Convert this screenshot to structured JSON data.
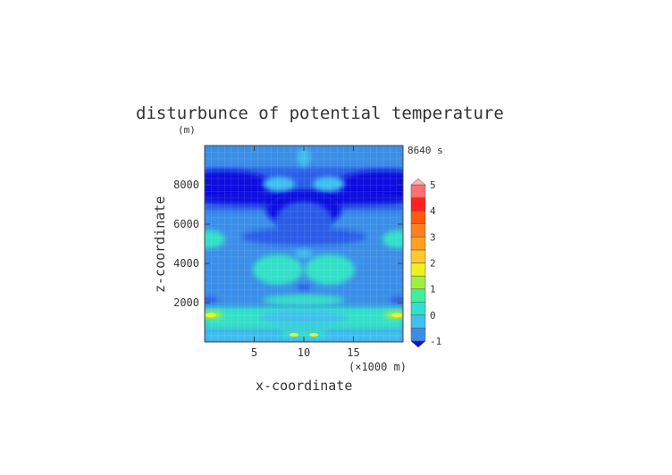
{
  "chart_data": {
    "type": "heatmap",
    "title": "disturbunce of potential temperature",
    "ylabel": "z-coordinate",
    "yunit": "(m)",
    "xlabel": "x-coordinate",
    "xunit": "(×1000 m)",
    "time_label": "8640 s",
    "xlim": [
      0,
      20
    ],
    "ylim": [
      0,
      10000
    ],
    "xticks": [
      "5",
      "10",
      "15"
    ],
    "xtick_values": [
      5,
      10,
      15
    ],
    "yticks": [
      "2000",
      "4000",
      "6000",
      "8000"
    ],
    "ytick_values": [
      2000,
      4000,
      6000,
      8000
    ],
    "grid": true,
    "colorbar": {
      "min": -1,
      "max": 5,
      "step": 0.5,
      "labels": [
        "-1",
        "0",
        "1",
        "2",
        "3",
        "4",
        "5"
      ],
      "label_values": [
        -1,
        0,
        1,
        2,
        3,
        4,
        5
      ],
      "colors": [
        "#1010e0",
        "#2a5ce8",
        "#3a8ee8",
        "#40c0ee",
        "#30e0c8",
        "#40f098",
        "#a0f040",
        "#f0f020",
        "#ffc830",
        "#ffa020",
        "#ff8020",
        "#ff5a10",
        "#ff2020",
        "#ff7070",
        "#ffb0b0"
      ]
    },
    "features": [
      {
        "x": 10.0,
        "z": 7200,
        "value": -1.0
      },
      {
        "x": 1.5,
        "z": 7900,
        "value": -0.7
      },
      {
        "x": 18.5,
        "z": 7900,
        "value": -0.7
      },
      {
        "x": 8.5,
        "z": 6400,
        "value": -0.7
      },
      {
        "x": 11.5,
        "z": 6400,
        "value": -0.7
      },
      {
        "x": 10.0,
        "z": 9500,
        "value": 0.4
      },
      {
        "x": 7.5,
        "z": 8100,
        "value": 0.2
      },
      {
        "x": 12.5,
        "z": 8100,
        "value": 0.2
      },
      {
        "x": 0.5,
        "z": 5100,
        "value": 0.8
      },
      {
        "x": 19.5,
        "z": 5100,
        "value": 0.8
      },
      {
        "x": 8.0,
        "z": 3800,
        "value": 0.9
      },
      {
        "x": 12.0,
        "z": 3800,
        "value": 0.9
      },
      {
        "x": 10.0,
        "z": 3200,
        "value": 0.7
      },
      {
        "x": 7.5,
        "z": 2200,
        "value": 0.6
      },
      {
        "x": 12.5,
        "z": 2200,
        "value": 0.6
      },
      {
        "x": 10.0,
        "z": 2800,
        "value": -0.2
      },
      {
        "x": 10.0,
        "z": 800,
        "value": 0.9
      },
      {
        "x": 1.0,
        "z": 1400,
        "value": 1.2
      },
      {
        "x": 19.0,
        "z": 1400,
        "value": 1.2
      },
      {
        "x": 9.0,
        "z": 400,
        "value": 1.7
      },
      {
        "x": 11.0,
        "z": 400,
        "value": 1.7
      }
    ]
  }
}
